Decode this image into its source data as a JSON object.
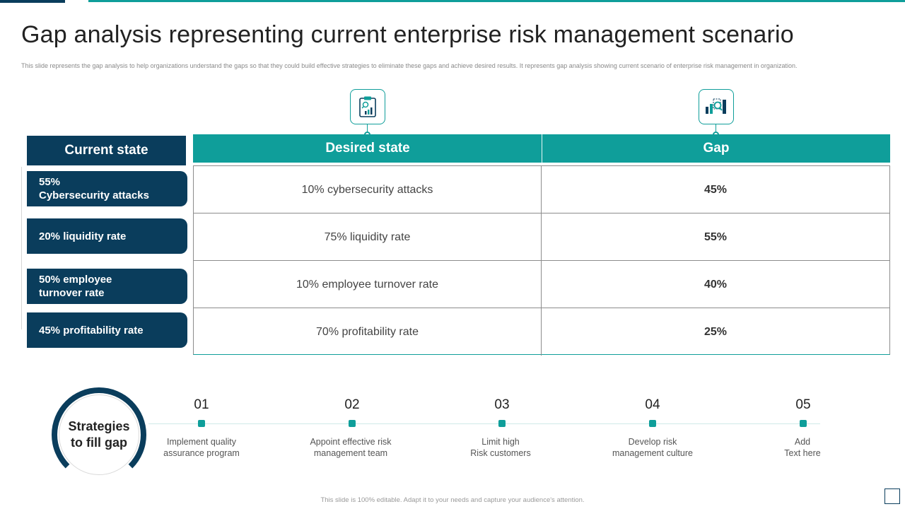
{
  "title": "Gap analysis representing current enterprise risk management scenario",
  "subtitle": "This slide represents the gap analysis to help organizations understand the gaps so that they could build effective strategies to eliminate these gaps and achieve desired results. It represents gap analysis showing current scenario of enterprise risk management in organization.",
  "colors": {
    "navy": "#0a3d5c",
    "teal": "#0f9e9a"
  },
  "icons": {
    "desired": "clipboard-chart-icon",
    "gap": "bar-chart-magnifier-icon"
  },
  "current_state": {
    "header": "Current state",
    "items": [
      {
        "line1": "55%",
        "line2": "Cybersecurity attacks"
      },
      {
        "line1": "20% liquidity rate",
        "line2": ""
      },
      {
        "line1": "50% employee",
        "line2": "turnover rate"
      },
      {
        "line1": "45% profitability rate",
        "line2": ""
      }
    ]
  },
  "table": {
    "headers": {
      "desired": "Desired state",
      "gap": "Gap"
    },
    "rows": [
      {
        "desired": "10% cybersecurity attacks",
        "gap": "45%"
      },
      {
        "desired": "75% liquidity rate",
        "gap": "55%"
      },
      {
        "desired": "10% employee turnover rate",
        "gap": "40%"
      },
      {
        "desired": "70% profitability rate",
        "gap": "25%"
      }
    ]
  },
  "strategies": {
    "label_line1": "Strategies",
    "label_line2": "to fill gap",
    "steps": [
      {
        "num": "01",
        "line1": "Implement quality",
        "line2": "assurance program"
      },
      {
        "num": "02",
        "line1": "Appoint effective risk",
        "line2": "management team"
      },
      {
        "num": "03",
        "line1": "Limit high",
        "line2": "Risk customers"
      },
      {
        "num": "04",
        "line1": "Develop risk",
        "line2": "management culture"
      },
      {
        "num": "05",
        "line1": "Add",
        "line2": "Text here"
      }
    ]
  },
  "footer": "This slide is 100% editable. Adapt it to your needs and capture your audience's attention."
}
